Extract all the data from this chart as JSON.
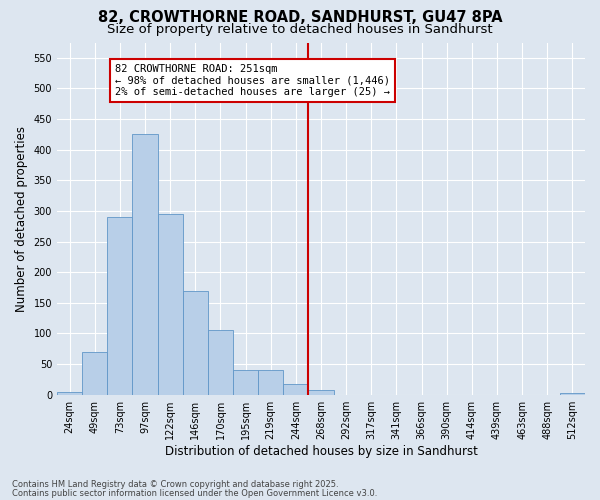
{
  "title": "82, CROWTHORNE ROAD, SANDHURST, GU47 8PA",
  "subtitle": "Size of property relative to detached houses in Sandhurst",
  "xlabel": "Distribution of detached houses by size in Sandhurst",
  "ylabel": "Number of detached properties",
  "bin_labels": [
    "24sqm",
    "49sqm",
    "73sqm",
    "97sqm",
    "122sqm",
    "146sqm",
    "170sqm",
    "195sqm",
    "219sqm",
    "244sqm",
    "268sqm",
    "292sqm",
    "317sqm",
    "341sqm",
    "366sqm",
    "390sqm",
    "414sqm",
    "439sqm",
    "463sqm",
    "488sqm",
    "512sqm"
  ],
  "bar_values": [
    5,
    70,
    290,
    425,
    295,
    170,
    105,
    40,
    40,
    18,
    8,
    0,
    0,
    0,
    0,
    0,
    0,
    0,
    0,
    0,
    3
  ],
  "bar_color": "#b8cfe8",
  "bar_edge_color": "#6096c8",
  "background_color": "#dde6f0",
  "grid_color": "#ffffff",
  "vline_color": "#cc0000",
  "vline_x": 9.5,
  "annotation_title": "82 CROWTHORNE ROAD: 251sqm",
  "annotation_line1": "← 98% of detached houses are smaller (1,446)",
  "annotation_line2": "2% of semi-detached houses are larger (25) →",
  "annotation_box_color": "#cc0000",
  "ylim": [
    0,
    575
  ],
  "yticks": [
    0,
    50,
    100,
    150,
    200,
    250,
    300,
    350,
    400,
    450,
    500,
    550
  ],
  "footer_line1": "Contains HM Land Registry data © Crown copyright and database right 2025.",
  "footer_line2": "Contains public sector information licensed under the Open Government Licence v3.0.",
  "title_fontsize": 10.5,
  "subtitle_fontsize": 9.5,
  "axis_label_fontsize": 8.5,
  "tick_fontsize": 7,
  "annot_fontsize": 7.5,
  "footer_fontsize": 6
}
